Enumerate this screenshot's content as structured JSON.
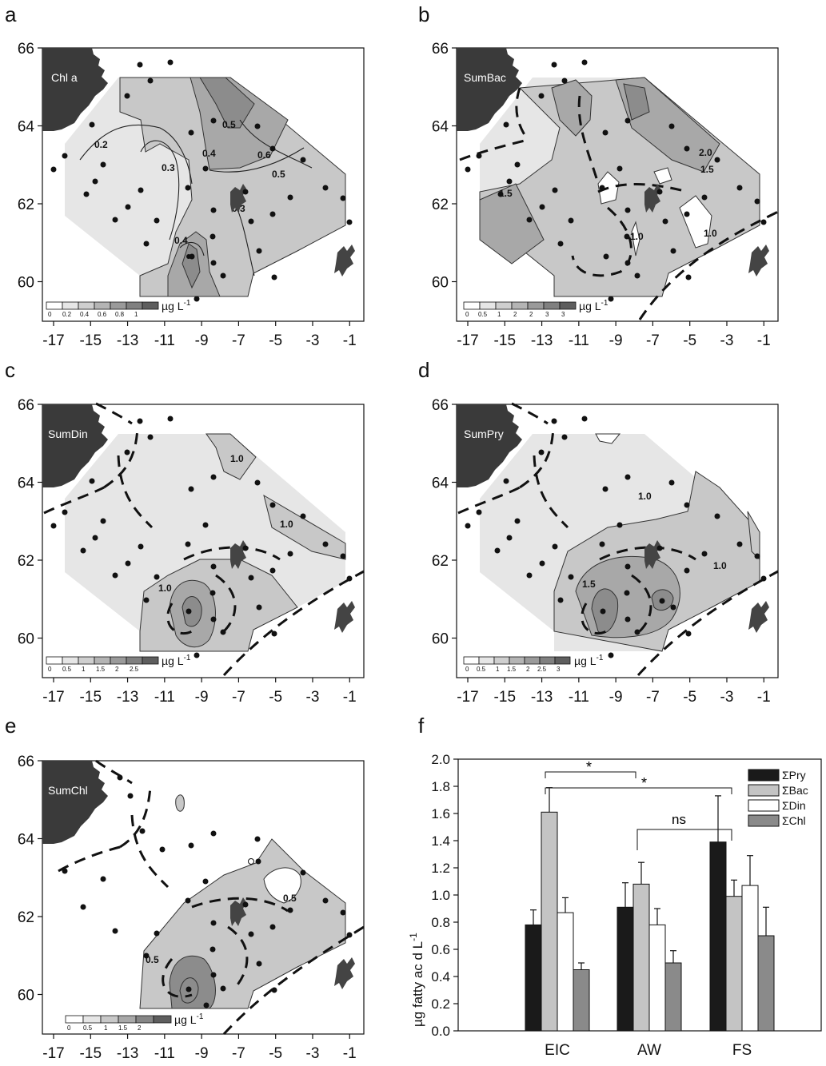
{
  "panels": [
    {
      "letter": "a",
      "label": "Chl a",
      "contour_labels": [
        "0.2",
        "0.3",
        "0.4",
        "0.5",
        "0.6",
        "0.5",
        "0.4",
        "0.3"
      ],
      "legend_ticks": [
        "0",
        "0.2",
        "0.4",
        "0.6",
        "0.8",
        "1"
      ],
      "legend_unit": "µg L",
      "legend_sup": "-1",
      "has_front": false
    },
    {
      "letter": "b",
      "label": "SumBac",
      "contour_labels": [
        "1.5",
        "2.0",
        "1.5",
        "1.0",
        "1.0"
      ],
      "legend_ticks": [
        "0",
        "0.5",
        "1",
        "2",
        "2",
        "3",
        "3"
      ],
      "legend_unit": "µg L",
      "legend_sup": "-1",
      "has_front": true
    },
    {
      "letter": "c",
      "label": "SumDin",
      "contour_labels": [
        "1.0",
        "1.0",
        "1.0"
      ],
      "legend_ticks": [
        "0",
        "0.5",
        "1",
        "1.5",
        "2",
        "2.5"
      ],
      "legend_unit": "µg L",
      "legend_sup": "-1",
      "has_front": true
    },
    {
      "letter": "d",
      "label": "SumPry",
      "contour_labels": [
        "1.0",
        "1.0",
        "1.5"
      ],
      "legend_ticks": [
        "0",
        "0.5",
        "1",
        "1.5",
        "2",
        "2.5",
        "3"
      ],
      "legend_unit": "µg L",
      "legend_sup": "-1",
      "has_front": true
    },
    {
      "letter": "e",
      "label": "SumChl",
      "contour_labels": [
        "0.5",
        "0.5"
      ],
      "legend_ticks": [
        "0",
        "0.5",
        "1",
        "1.5",
        "2"
      ],
      "legend_unit": "µg L",
      "legend_sup": "-1",
      "has_front": true
    }
  ],
  "map_axes": {
    "x_ticks": [
      "-17",
      "-15",
      "-13",
      "-11",
      "-9",
      "-7",
      "-5",
      "-3",
      "-1"
    ],
    "y_ticks": [
      "66",
      "64",
      "62",
      "60"
    ]
  },
  "chart_data": {
    "type": "bar",
    "panel_letter": "f",
    "categories": [
      "EIC",
      "AW",
      "FS"
    ],
    "series": [
      {
        "name": "ΣPry",
        "values": [
          0.78,
          0.91,
          1.39
        ],
        "errors": [
          0.11,
          0.18,
          0.34
        ],
        "color": "#1a1a1a"
      },
      {
        "name": "ΣBac",
        "values": [
          1.61,
          1.08,
          0.99
        ],
        "errors": [
          0.18,
          0.16,
          0.12
        ],
        "color": "#c4c4c4"
      },
      {
        "name": "ΣDin",
        "values": [
          0.87,
          0.78,
          1.07
        ],
        "errors": [
          0.11,
          0.12,
          0.22
        ],
        "color": "#ffffff"
      },
      {
        "name": "ΣChl",
        "values": [
          0.45,
          0.5,
          0.7
        ],
        "errors": [
          0.05,
          0.09,
          0.21
        ],
        "color": "#8a8a8a"
      }
    ],
    "ylabel": "µg fatty ac d L",
    "ylabel_sup": "-1",
    "ylim": [
      0,
      2.0
    ],
    "yticks": [
      "0.0",
      "0.2",
      "0.4",
      "0.6",
      "0.8",
      "1.0",
      "1.2",
      "1.4",
      "1.6",
      "1.8",
      "2.0"
    ],
    "annotations": [
      "*",
      "*",
      "ns"
    ],
    "legend_position": "top-right"
  }
}
